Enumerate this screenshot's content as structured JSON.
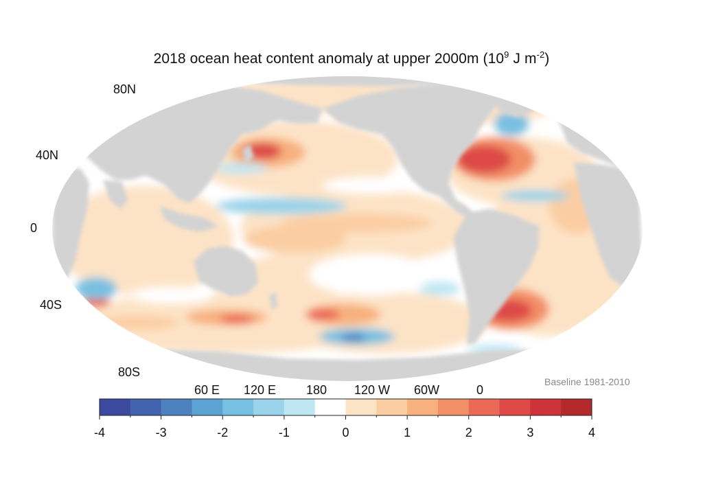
{
  "title": {
    "prefix": "2018 ocean heat content anomaly at upper 2000m (10",
    "exp1": "9",
    "mid": " J m",
    "exp2": "-2",
    "suffix": ")"
  },
  "lat_labels": [
    "80N",
    "40N",
    "0",
    "40S",
    "80S"
  ],
  "lon_labels": [
    "60 E",
    "120 E",
    "180",
    "120 W",
    "60W",
    "0"
  ],
  "baseline": "Baseline 1981-2010",
  "colorbar": {
    "min": -4,
    "max": 4,
    "ticks": [
      "-4",
      "-3",
      "-2",
      "-1",
      "0",
      "1",
      "2",
      "3",
      "4"
    ],
    "colors": [
      "#3c4ba0",
      "#4363ae",
      "#4d82be",
      "#5aa3d2",
      "#78c0e1",
      "#9ad3ea",
      "#bfe6f3",
      "#ffffff",
      "#fde3c6",
      "#fbcda3",
      "#f7b17f",
      "#f28f66",
      "#ea6a57",
      "#dd4a47",
      "#cd3338",
      "#b42a2c"
    ]
  },
  "colors": {
    "land": "#d3d3d3",
    "ocean_neutral": "#ffffff",
    "warm_light": "#fde3c6",
    "warm_mid": "#f7b17f",
    "warm_strong": "#dd4a47",
    "cool_light": "#bfe6f3",
    "cool_mid": "#78c0e1",
    "cool_strong": "#4d82be"
  }
}
